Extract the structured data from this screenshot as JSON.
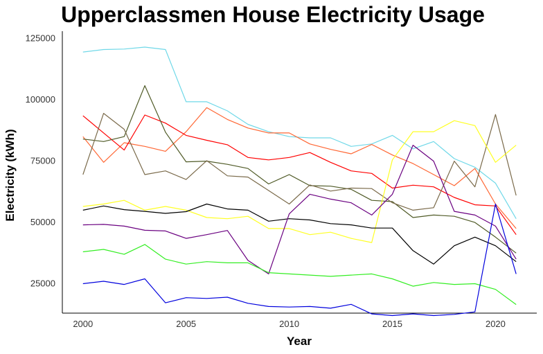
{
  "chart_data": {
    "type": "line",
    "title": "Upperclassmen House Electricity Usage",
    "xlabel": "Year",
    "ylabel": "Electricity (kWh)",
    "xlim": [
      1999,
      2022
    ],
    "ylim": [
      13000,
      128000
    ],
    "x_ticks": [
      2000,
      2005,
      2010,
      2015,
      2020
    ],
    "y_ticks": [
      25000,
      50000,
      75000,
      100000,
      125000
    ],
    "y_tick_labels": [
      "25000",
      "50000",
      "75000",
      "100000",
      "125000"
    ],
    "grid": false,
    "legend": "none",
    "x": [
      2000,
      2001,
      2002,
      2003,
      2004,
      2005,
      2006,
      2007,
      2008,
      2009,
      2010,
      2011,
      2012,
      2013,
      2014,
      2015,
      2016,
      2017,
      2018,
      2019,
      2020,
      2021
    ],
    "series": [
      {
        "color": "#6fd8e8",
        "values": [
          119500,
          120500,
          120700,
          121500,
          120500,
          99200,
          99200,
          95500,
          90000,
          87000,
          85000,
          84500,
          84500,
          81000,
          82000,
          85500,
          80000,
          83000,
          76000,
          72500,
          66000,
          51500
        ]
      },
      {
        "color": "#ff6633",
        "values": [
          85000,
          74500,
          82500,
          81000,
          79000,
          87000,
          96800,
          92000,
          88500,
          86500,
          86500,
          82000,
          79800,
          78000,
          81800,
          77500,
          74000,
          69500,
          65000,
          72000,
          57500,
          47500
        ]
      },
      {
        "color": "#ff0000",
        "values": [
          93500,
          86500,
          79500,
          93800,
          90500,
          85500,
          83500,
          81700,
          76500,
          75500,
          76500,
          78500,
          74500,
          71000,
          70000,
          64000,
          65200,
          64500,
          60200,
          57200,
          56700,
          45000
        ]
      },
      {
        "color": "#4f5a26",
        "values": [
          84000,
          83000,
          85000,
          105800,
          86800,
          74700,
          75000,
          73700,
          72000,
          65700,
          69500,
          65000,
          64800,
          63500,
          59000,
          58500,
          52000,
          53000,
          52500,
          50000,
          44000,
          37500
        ]
      },
      {
        "color": "#7a6a4a",
        "values": [
          69500,
          94500,
          88000,
          69500,
          71000,
          67500,
          75200,
          69000,
          68500,
          63000,
          57500,
          65300,
          62800,
          64000,
          63800,
          58000,
          55000,
          56000,
          75000,
          64500,
          94000,
          61000
        ]
      },
      {
        "color": "#ffff22",
        "values": [
          56500,
          57500,
          59000,
          55000,
          56500,
          55000,
          52000,
          51500,
          52500,
          47500,
          47500,
          45000,
          46000,
          43500,
          41800,
          75500,
          87000,
          87000,
          91500,
          89500,
          74500,
          81500
        ]
      },
      {
        "color": "#000000",
        "values": [
          55000,
          56700,
          55200,
          54500,
          53700,
          54400,
          57500,
          55500,
          55000,
          50500,
          51500,
          51000,
          49500,
          49000,
          47700,
          47700,
          38500,
          33000,
          40500,
          44000,
          40500,
          34000
        ]
      },
      {
        "color": "#6a0080",
        "values": [
          49000,
          49200,
          48500,
          46800,
          46500,
          43500,
          45000,
          46700,
          34500,
          29000,
          53500,
          61500,
          59500,
          58000,
          53000,
          61500,
          81500,
          75000,
          54500,
          53000,
          48500,
          35000
        ]
      },
      {
        "color": "#33ee22",
        "values": [
          38000,
          39000,
          37000,
          41000,
          35000,
          33000,
          34000,
          33500,
          33500,
          29500,
          29000,
          28500,
          28000,
          28500,
          29000,
          27000,
          24000,
          25500,
          24700,
          25000,
          22700,
          16500
        ]
      },
      {
        "color": "#0000dd",
        "values": [
          25000,
          26000,
          24700,
          27000,
          17200,
          19300,
          19000,
          19500,
          17000,
          15700,
          15500,
          15700,
          15000,
          16600,
          12700,
          12000,
          12700,
          12000,
          12500,
          13500,
          57500,
          29000
        ]
      }
    ]
  }
}
